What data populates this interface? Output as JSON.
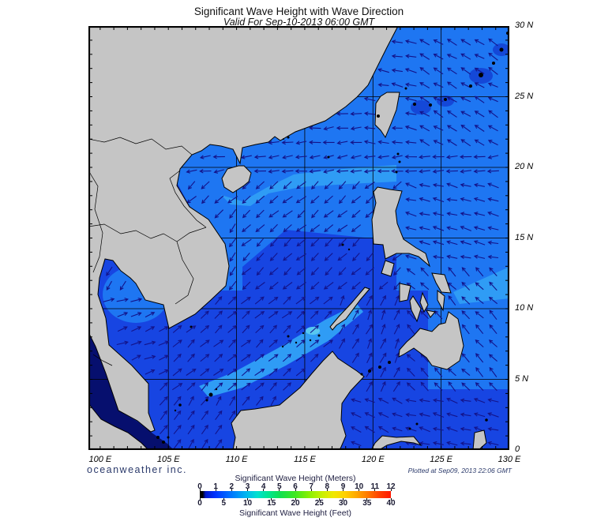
{
  "header": {
    "title": "Significant Wave Height with Wave Direction",
    "subtitle": "Valid For Sep-10-2013 06:00 GMT"
  },
  "map": {
    "lon_labels": [
      "100 E",
      "105 E",
      "110 E",
      "115 E",
      "120 E",
      "125 E",
      "130 E"
    ],
    "lat_labels": [
      "30 N",
      "25 N",
      "20 N",
      "15 N",
      "10 N",
      "5 N",
      "0"
    ],
    "grid": {
      "lon": [
        105,
        110,
        115,
        120,
        125
      ],
      "lat": [
        5,
        10,
        15,
        20,
        25
      ]
    },
    "extent": {
      "lon_min": 99.14,
      "lon_max": 130,
      "lat_min": 0,
      "lat_max": 30
    },
    "colors": {
      "land": "#c5c5c5",
      "coast": "#000000",
      "grid": "#000000",
      "frame": "#000000",
      "ocean_base": "#1745e2",
      "ocean_bright": "#1e76f2",
      "ocean_band_light": "#2f9cf5",
      "ocean_cyan_spot": "#58c8f0",
      "ocean_dark_calm": "#060f6e",
      "ocean_coastal_royal": "#1338cc",
      "ocean_deep_patch": "#1448d8",
      "arrow": "#13138a"
    },
    "wave_direction_field": {
      "units": "bearing_deg = direction arrows point, clockwise from north",
      "regions": [
        {
          "name": "east-china-sea-far-east",
          "lat_min": 21.5,
          "lon_min": 123,
          "bearing_deg": 300
        },
        {
          "name": "east-china-sea-mid",
          "lat_min": 21.5,
          "lon_min": 119,
          "bearing_deg": 280
        },
        {
          "name": "south-china-coast",
          "lat_min": 21.5,
          "bearing_deg": 265
        },
        {
          "name": "north-scs-west-band",
          "lat_min": 19.3,
          "lon_min": 106.5,
          "bearing_deg": 262
        },
        {
          "name": "pacific-north",
          "lon_min": 121.8,
          "lat_min": 13,
          "bearing_deg": 285
        },
        {
          "name": "pacific-east-philippines",
          "lon_min": 121.8,
          "lat_min": 4.5,
          "bearing_deg": 315
        },
        {
          "name": "pacific-south",
          "lon_min": 121.8,
          "bearing_deg": 285
        },
        {
          "name": "tonkin-vietnam-coast",
          "lat_min": 11,
          "lat_max": 17,
          "lon_max": 110.5,
          "bearing_deg": 218
        },
        {
          "name": "central-scs",
          "lat_min": 11,
          "bearing_deg": 228
        },
        {
          "name": "gulf-of-thailand",
          "lon_max": 104.8,
          "lat_min": 5.5,
          "bearing_deg": 70
        },
        {
          "name": "celebes-sea",
          "lat_max": 4.2,
          "lon_min": 118.5,
          "bearing_deg": 295
        },
        {
          "name": "karimata-java-sea",
          "lat_max": 4.2,
          "bearing_deg": 35
        },
        {
          "name": "southern-scs",
          "lon_max": 117.5,
          "bearing_deg": 48
        },
        {
          "name": "sulu-sea",
          "bearing_deg": 25
        }
      ]
    }
  },
  "footer": {
    "brand": "oceanweather inc.",
    "plotted": "Plotted at Sep09, 2013 22:06 GMT"
  },
  "legend": {
    "title_meters": "Significant Wave Height (Meters)",
    "title_feet": "Significant Wave Height (Feet)",
    "meters_ticks": [
      "0",
      "1",
      "2",
      "3",
      "4",
      "5",
      "6",
      "7",
      "8",
      "9",
      "10",
      "11",
      "12"
    ],
    "feet_ticks": [
      "0",
      "5",
      "10",
      "15",
      "20",
      "25",
      "30",
      "35",
      "40"
    ],
    "gradient_stops": [
      [
        "0%",
        "#000000"
      ],
      [
        "1.5%",
        "#000000"
      ],
      [
        "3%",
        "#0018c8"
      ],
      [
        "8%",
        "#0032ff"
      ],
      [
        "16%",
        "#0073ff"
      ],
      [
        "24%",
        "#00b4f0"
      ],
      [
        "30%",
        "#00e0d0"
      ],
      [
        "36%",
        "#00e690"
      ],
      [
        "42%",
        "#10e050"
      ],
      [
        "50%",
        "#40e820"
      ],
      [
        "58%",
        "#90f000"
      ],
      [
        "64%",
        "#c8f000"
      ],
      [
        "70%",
        "#f0e800"
      ],
      [
        "76%",
        "#ffd000"
      ],
      [
        "82%",
        "#ffa800"
      ],
      [
        "88%",
        "#ff7800"
      ],
      [
        "94%",
        "#ff4000"
      ],
      [
        "100%",
        "#ff1800"
      ]
    ]
  }
}
